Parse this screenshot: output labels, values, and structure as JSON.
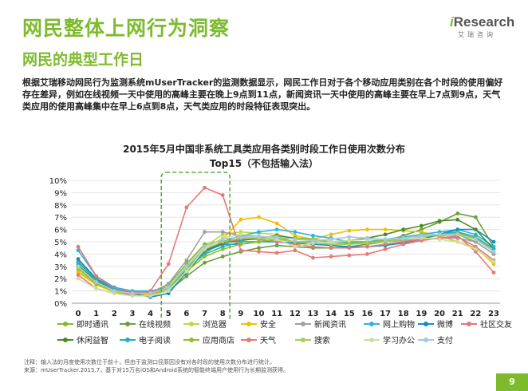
{
  "header": {
    "title": "网民整体上网行为洞察",
    "subtitle": "网民的典型工作日",
    "logo_main": "Research",
    "logo_i": "i",
    "logo_sub": "艾瑞咨询"
  },
  "description": "根据艾瑞移动网民行为监测系统mUserTracker的监测数据显示，网民工作日对于各个移动应用类别在各个时段的使用偏好存在差异，例如在线视频一天中使用的高峰主要在晚上9点到11点，新闻资讯一天中使用的高峰主要在早上7点到9点，天气类应用的使用高峰集中在早上6点到8点，天气类应用的时段特征表现突出。",
  "footer": {
    "note1": "注释：输入法的月度使用次数位于前十，但由于监测口径原因没有对各时段的使用次数分布进行统计。",
    "note2": "来源：mUserTracker.2015.7，基于对15万名iOS和Android系统的智能终端用户使用行为长期监测获得。",
    "page": "9"
  },
  "colors": {
    "accent": "#7dbb2d",
    "highlight_box": "#5aaa3c"
  },
  "chart_data": {
    "type": "line",
    "title": "2015年5月中国非系统工具类应用各类别时段工作日使用次数分布",
    "subtitle": "Top15（不包括输入法）",
    "x": [
      0,
      1,
      2,
      3,
      4,
      5,
      6,
      7,
      8,
      9,
      10,
      11,
      12,
      13,
      14,
      15,
      16,
      17,
      18,
      19,
      20,
      21,
      22,
      23
    ],
    "x_ticks": [
      "0",
      "1",
      "2",
      "3",
      "4",
      "5",
      "6",
      "7",
      "8",
      "9",
      "10",
      "11",
      "12",
      "13",
      "14",
      "15",
      "16",
      "17",
      "18",
      "19",
      "20",
      "21",
      "22",
      "23"
    ],
    "ylim": [
      0,
      10
    ],
    "y_ticks": [
      "0%",
      "1%",
      "2%",
      "3%",
      "4%",
      "5%",
      "6%",
      "7%",
      "8%",
      "9%",
      "10%"
    ],
    "y_tick_values": [
      0,
      1,
      2,
      3,
      4,
      5,
      6,
      7,
      8,
      9,
      10
    ],
    "highlight": {
      "x_from": 5,
      "x_to": 8
    },
    "series": [
      {
        "name": "即时通讯",
        "color": "#7dbb2d",
        "values": [
          3.4,
          2.0,
          1.2,
          0.9,
          0.9,
          1.5,
          3.2,
          4.8,
          5.1,
          5.0,
          5.0,
          5.2,
          5.0,
          5.0,
          4.8,
          4.8,
          4.9,
          5.0,
          5.3,
          5.4,
          5.5,
          5.6,
          5.0,
          4.0
        ]
      },
      {
        "name": "在线视频",
        "color": "#6aa03a",
        "values": [
          3.0,
          1.8,
          1.0,
          0.7,
          0.7,
          1.0,
          2.2,
          3.3,
          3.8,
          4.2,
          4.5,
          4.7,
          4.6,
          4.5,
          4.5,
          4.6,
          4.8,
          5.0,
          5.5,
          6.0,
          6.6,
          7.3,
          7.0,
          4.6
        ]
      },
      {
        "name": "浏览器",
        "color": "#c0d93a",
        "values": [
          2.6,
          1.6,
          1.0,
          0.8,
          0.8,
          1.3,
          2.9,
          4.6,
          5.6,
          5.8,
          5.7,
          5.6,
          5.2,
          5.1,
          5.0,
          5.0,
          5.0,
          5.1,
          5.3,
          5.6,
          5.8,
          5.8,
          5.4,
          4.2
        ]
      },
      {
        "name": "安全",
        "color": "#f0c000",
        "values": [
          2.5,
          1.5,
          0.9,
          0.7,
          0.7,
          1.2,
          2.8,
          4.0,
          5.2,
          6.8,
          7.0,
          6.5,
          5.5,
          5.2,
          5.6,
          5.9,
          6.0,
          6.0,
          5.9,
          5.8,
          5.5,
          5.0,
          4.5,
          3.2
        ]
      },
      {
        "name": "新闻资讯",
        "color": "#a0a0a0",
        "values": [
          2.8,
          1.6,
          1.0,
          0.8,
          0.8,
          1.6,
          3.5,
          5.8,
          5.8,
          5.5,
          5.4,
          5.3,
          5.0,
          5.0,
          4.8,
          4.8,
          4.9,
          5.0,
          5.1,
          5.2,
          5.3,
          5.3,
          5.0,
          4.0
        ]
      },
      {
        "name": "网上购物",
        "color": "#29b6e6",
        "values": [
          4.3,
          2.2,
          1.3,
          1.0,
          1.0,
          1.3,
          2.7,
          4.2,
          5.0,
          5.5,
          5.8,
          6.0,
          5.8,
          5.5,
          5.3,
          5.0,
          5.0,
          5.2,
          5.4,
          5.6,
          5.8,
          6.0,
          5.6,
          4.6
        ]
      },
      {
        "name": "微博",
        "color": "#0f8fc4",
        "values": [
          3.6,
          2.0,
          1.2,
          0.8,
          0.5,
          0.8,
          2.5,
          4.2,
          4.8,
          4.8,
          5.0,
          5.0,
          4.9,
          4.8,
          4.7,
          4.6,
          4.6,
          4.7,
          4.9,
          5.2,
          5.6,
          6.0,
          6.0,
          5.0
        ]
      },
      {
        "name": "社区交友",
        "color": "#e07878",
        "values": [
          4.6,
          2.2,
          1.2,
          0.9,
          0.9,
          1.3,
          2.8,
          4.3,
          5.0,
          5.2,
          5.2,
          5.0,
          4.8,
          4.6,
          4.5,
          4.5,
          4.6,
          4.8,
          5.0,
          5.2,
          5.3,
          5.4,
          4.6,
          3.5
        ]
      },
      {
        "name": "休闲益智",
        "color": "#4a8a2a",
        "values": [
          3.1,
          1.8,
          1.1,
          0.8,
          0.8,
          1.3,
          2.8,
          4.3,
          4.9,
          5.1,
          5.3,
          5.5,
          5.3,
          5.2,
          5.0,
          5.1,
          5.3,
          5.6,
          6.0,
          6.3,
          6.7,
          6.8,
          6.0,
          4.4
        ]
      },
      {
        "name": "电子阅读",
        "color": "#20b0c8",
        "values": [
          3.3,
          1.9,
          1.1,
          0.8,
          0.8,
          1.2,
          2.8,
          4.0,
          4.6,
          5.0,
          5.0,
          5.2,
          5.3,
          5.2,
          5.0,
          4.9,
          4.9,
          5.0,
          5.2,
          5.4,
          5.6,
          5.8,
          5.4,
          4.4
        ]
      },
      {
        "name": "应用商店",
        "color": "#90c020",
        "values": [
          2.8,
          1.6,
          1.0,
          0.8,
          0.8,
          1.2,
          2.6,
          3.8,
          4.4,
          4.8,
          5.0,
          5.2,
          5.3,
          5.2,
          5.0,
          5.0,
          5.0,
          5.1,
          5.2,
          5.4,
          5.6,
          5.7,
          5.3,
          4.2
        ]
      },
      {
        "name": "天气",
        "color": "#e87878",
        "values": [
          2.3,
          1.2,
          0.8,
          0.7,
          1.0,
          3.2,
          7.8,
          9.4,
          8.8,
          4.3,
          4.2,
          4.1,
          4.3,
          3.7,
          3.8,
          3.9,
          4.0,
          4.4,
          4.8,
          5.1,
          5.3,
          5.5,
          4.2,
          2.5
        ]
      },
      {
        "name": "搜索",
        "color": "#a8cc60",
        "values": [
          2.9,
          1.7,
          1.0,
          0.8,
          0.8,
          1.3,
          2.9,
          4.4,
          5.0,
          5.3,
          5.3,
          5.2,
          5.0,
          4.9,
          4.8,
          4.8,
          4.9,
          5.0,
          5.2,
          5.4,
          5.6,
          5.6,
          5.2,
          4.2
        ]
      },
      {
        "name": "学习办公",
        "color": "#c8e0a0",
        "values": [
          2.0,
          1.2,
          0.8,
          0.6,
          0.6,
          1.0,
          2.6,
          4.4,
          5.3,
          5.6,
          5.5,
          5.2,
          4.6,
          4.9,
          5.0,
          5.1,
          5.2,
          5.2,
          5.3,
          5.3,
          5.2,
          5.0,
          4.4,
          3.4
        ]
      },
      {
        "name": "支付",
        "color": "#a8c8e0",
        "values": [
          3.0,
          1.7,
          1.0,
          0.8,
          0.8,
          1.3,
          3.0,
          4.6,
          5.2,
          5.4,
          5.4,
          5.4,
          5.2,
          5.1,
          5.2,
          5.4,
          5.3,
          5.2,
          5.3,
          5.5,
          5.6,
          5.6,
          5.2,
          4.2
        ]
      }
    ]
  }
}
